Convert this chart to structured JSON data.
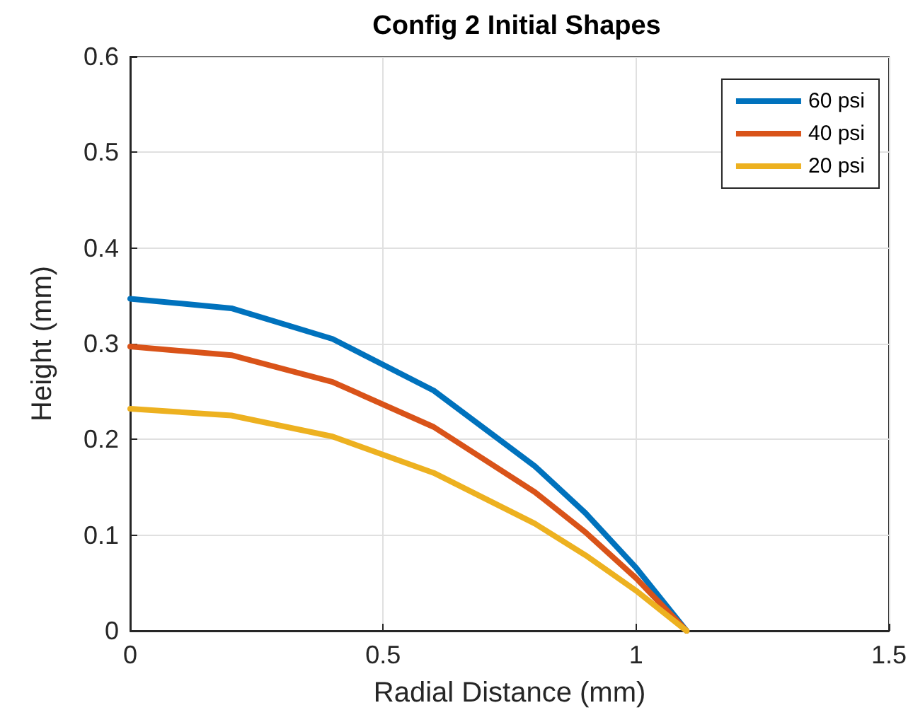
{
  "chart_data": {
    "type": "line",
    "title": "Config 2 Initial Shapes",
    "xlabel": "Radial Distance (mm)",
    "ylabel": "Height (mm)",
    "x": [
      0,
      0.2,
      0.4,
      0.6,
      0.8,
      0.9,
      1.0,
      1.1
    ],
    "series": [
      {
        "name": "60 psi",
        "color": "#0072bd",
        "values": [
          0.347,
          0.337,
          0.305,
          0.251,
          0.172,
          0.123,
          0.066,
          0
        ]
      },
      {
        "name": "40 psi",
        "color": "#d95319",
        "values": [
          0.297,
          0.288,
          0.26,
          0.213,
          0.145,
          0.103,
          0.055,
          0
        ]
      },
      {
        "name": "20 psi",
        "color": "#edb120",
        "values": [
          0.232,
          0.225,
          0.203,
          0.165,
          0.112,
          0.079,
          0.042,
          0
        ]
      }
    ],
    "xlim": [
      0,
      1.5
    ],
    "xticks": [
      0,
      0.5,
      1,
      1.5
    ],
    "ylim": [
      0,
      0.6
    ],
    "yticks": [
      0,
      0.1,
      0.2,
      0.3,
      0.4,
      0.5,
      0.6
    ],
    "grid": true,
    "legend": "top right",
    "marker": "none",
    "line_style": "solid"
  }
}
